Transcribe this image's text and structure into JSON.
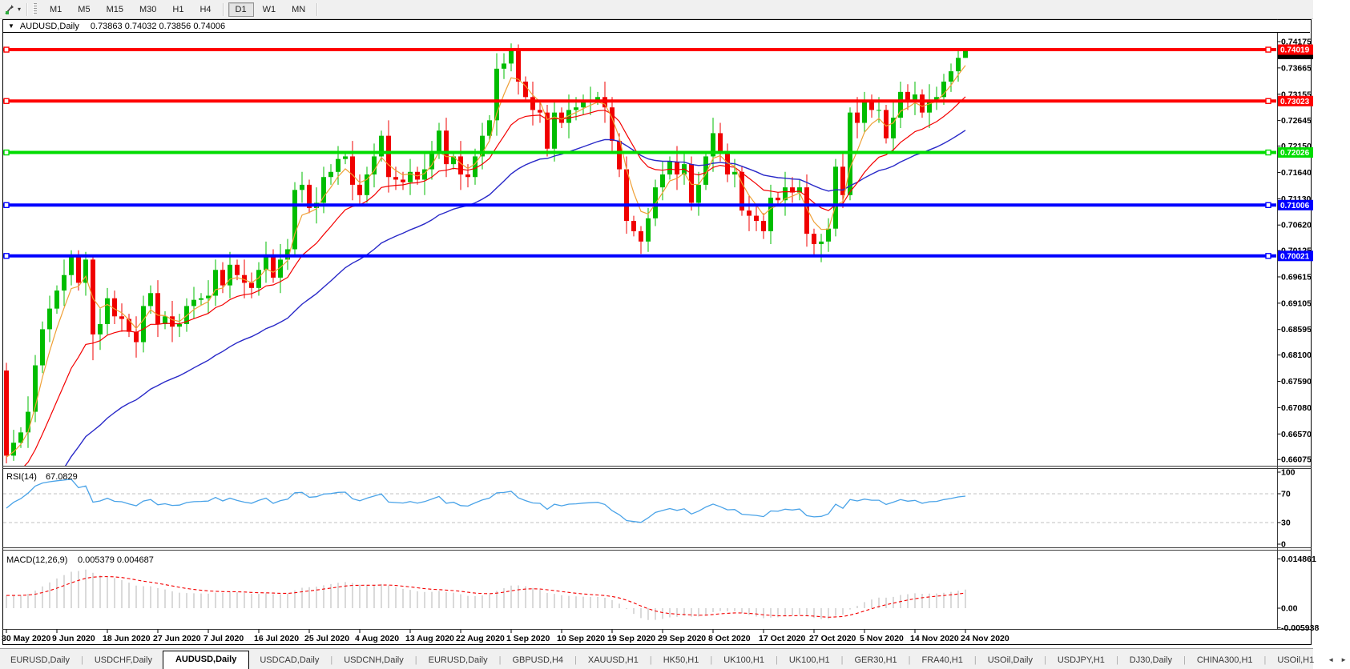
{
  "toolbar": {
    "caret": "▾",
    "timeframes": [
      "M1",
      "M5",
      "M15",
      "M30",
      "H1",
      "H4",
      "D1",
      "W1",
      "MN"
    ],
    "active_timeframe": "D1"
  },
  "chart": {
    "menu_icon": "▼",
    "symbol_title": "AUDUSD,Daily",
    "ohlc": "0.73863 0.74032 0.73856 0.74006"
  },
  "price_axis": {
    "labels": [
      "0.74175",
      "0.73665",
      "0.73155",
      "0.72645",
      "0.72150",
      "0.71640",
      "0.71130",
      "0.70620",
      "0.70125",
      "0.69615",
      "0.69105",
      "0.68595",
      "0.68100",
      "0.67590",
      "0.67080",
      "0.66570",
      "0.66075"
    ]
  },
  "hlines": [
    {
      "label": "0.74019",
      "price": 0.74019,
      "color": "#ff0000"
    },
    {
      "label": "0.73023",
      "price": 0.73023,
      "color": "#ff0000"
    },
    {
      "label": "0.72026",
      "price": 0.72026,
      "color": "#00dc00"
    },
    {
      "label": "0.71006",
      "price": 0.71006,
      "color": "#0000ff"
    },
    {
      "label": "0.70021",
      "price": 0.70021,
      "color": "#0000ff"
    }
  ],
  "bid_marker": {
    "price": 0.74006,
    "color": "#000000"
  },
  "date_axis": {
    "labels": [
      "30 May 2020",
      "9 Jun 2020",
      "18 Jun 2020",
      "27 Jun 2020",
      "7 Jul 2020",
      "16 Jul 2020",
      "25 Jul 2020",
      "4 Aug 2020",
      "13 Aug 2020",
      "22 Aug 2020",
      "1 Sep 2020",
      "10 Sep 2020",
      "19 Sep 2020",
      "29 Sep 2020",
      "8 Oct 2020",
      "17 Oct 2020",
      "27 Oct 2020",
      "5 Nov 2020",
      "14 Nov 2020",
      "24 Nov 2020"
    ],
    "bar_indices": [
      0,
      7,
      14,
      21,
      28,
      35,
      42,
      49,
      56,
      63,
      70,
      77,
      84,
      91,
      98,
      105,
      112,
      119,
      126,
      133
    ]
  },
  "rsi_panel": {
    "name": "RSI(14)",
    "value": "67.0829",
    "scale": [
      "100",
      "70",
      "30",
      "0"
    ],
    "upper_level": 70,
    "lower_level": 30
  },
  "macd_panel": {
    "name": "MACD(12,26,9)",
    "values": "0.005379 0.004687",
    "scale": [
      "0.014861",
      "0.00",
      "-0.005938"
    ]
  },
  "tabs": {
    "separator": "|",
    "scroll_left_icon": "◄",
    "scroll_right_icon": "►",
    "active_index": 2,
    "items": [
      "EURUSD,Daily",
      "USDCHF,Daily",
      "AUDUSD,Daily",
      "USDCAD,Daily",
      "USDCNH,Daily",
      "EURUSD,Daily",
      "GBPUSD,H4",
      "XAUUSD,H1",
      "HK50,H1",
      "UK100,H1",
      "UK100,H1",
      "GER30,H1",
      "FRA40,H1",
      "USOil,Daily",
      "USDJPY,H1",
      "DJ30,Daily",
      "CHINA300,H1",
      "USOil,H1"
    ]
  },
  "colors": {
    "bull_candle": "#00bd00",
    "bear_candle": "#f00000",
    "ma_fast": "#efa036",
    "ma_medium": "#f40000",
    "ma_slow": "#2929c8",
    "rsi_line": "#4aa3e8",
    "macd_histogram": "#b4b4b4",
    "macd_signal": "#f40000",
    "level_dashed": "#c0c0c0",
    "pane_border": "#3c3c3c"
  },
  "chart_data": {
    "type": "candlestick",
    "symbol": "AUDUSD",
    "timeframe": "Daily",
    "title": "AUDUSD,Daily",
    "current_ohlc": {
      "open": 0.73863,
      "high": 0.74032,
      "low": 0.73856,
      "close": 0.74006
    },
    "y_axis_range": [
      0.659,
      0.7435
    ],
    "horizontal_levels": [
      0.74019,
      0.73023,
      0.72026,
      0.71006,
      0.70021
    ],
    "indicators": [
      {
        "name": "RSI",
        "period": 14,
        "current": 67.0829,
        "levels": [
          70,
          30
        ],
        "range": [
          0,
          100
        ]
      },
      {
        "name": "MACD",
        "params": [
          12,
          26,
          9
        ],
        "current": [
          0.005379,
          0.004687
        ],
        "range": [
          -0.005938,
          0.014861
        ]
      }
    ],
    "candles": [
      [
        0.678,
        0.6795,
        0.66,
        0.6615
      ],
      [
        0.6615,
        0.6665,
        0.6605,
        0.664
      ],
      [
        0.664,
        0.667,
        0.663,
        0.666
      ],
      [
        0.666,
        0.673,
        0.663,
        0.67
      ],
      [
        0.67,
        0.681,
        0.668,
        0.679
      ],
      [
        0.679,
        0.6875,
        0.6775,
        0.686
      ],
      [
        0.686,
        0.6925,
        0.6835,
        0.69
      ],
      [
        0.69,
        0.6945,
        0.689,
        0.6935
      ],
      [
        0.6935,
        0.6995,
        0.6905,
        0.6965
      ],
      [
        0.6965,
        0.7013,
        0.6945,
        0.7
      ],
      [
        0.7,
        0.7013,
        0.6935,
        0.695
      ],
      [
        0.695,
        0.701,
        0.6925,
        0.6995
      ],
      [
        0.6995,
        0.7005,
        0.68,
        0.685
      ],
      [
        0.685,
        0.69,
        0.682,
        0.687
      ],
      [
        0.687,
        0.694,
        0.685,
        0.692
      ],
      [
        0.692,
        0.6935,
        0.687,
        0.6885
      ],
      [
        0.6885,
        0.691,
        0.6855,
        0.688
      ],
      [
        0.688,
        0.689,
        0.6845,
        0.6855
      ],
      [
        0.6855,
        0.6885,
        0.6805,
        0.6835
      ],
      [
        0.6835,
        0.6925,
        0.6815,
        0.6905
      ],
      [
        0.6905,
        0.6945,
        0.689,
        0.693
      ],
      [
        0.693,
        0.6955,
        0.6845,
        0.687
      ],
      [
        0.687,
        0.6895,
        0.686,
        0.6885
      ],
      [
        0.6885,
        0.6915,
        0.6835,
        0.6865
      ],
      [
        0.6865,
        0.689,
        0.6845,
        0.687
      ],
      [
        0.687,
        0.692,
        0.6855,
        0.6905
      ],
      [
        0.6905,
        0.6942,
        0.688,
        0.6917
      ],
      [
        0.6917,
        0.693,
        0.6907,
        0.692
      ],
      [
        0.692,
        0.6955,
        0.689,
        0.6925
      ],
      [
        0.6925,
        0.6995,
        0.6905,
        0.6975
      ],
      [
        0.6975,
        0.699,
        0.693,
        0.6945
      ],
      [
        0.6945,
        0.701,
        0.692,
        0.6985
      ],
      [
        0.6985,
        0.6995,
        0.6955,
        0.6965
      ],
      [
        0.6965,
        0.6995,
        0.692,
        0.695
      ],
      [
        0.695,
        0.697,
        0.692,
        0.694
      ],
      [
        0.694,
        0.699,
        0.6925,
        0.6975
      ],
      [
        0.6975,
        0.703,
        0.695,
        0.7005
      ],
      [
        0.7005,
        0.7015,
        0.695,
        0.696
      ],
      [
        0.696,
        0.7025,
        0.693,
        0.6995
      ],
      [
        0.6995,
        0.7035,
        0.6975,
        0.7015
      ],
      [
        0.7015,
        0.7145,
        0.7,
        0.713
      ],
      [
        0.713,
        0.7165,
        0.7105,
        0.714
      ],
      [
        0.714,
        0.715,
        0.7085,
        0.7095
      ],
      [
        0.7095,
        0.7135,
        0.7065,
        0.7105
      ],
      [
        0.7105,
        0.7175,
        0.7085,
        0.7155
      ],
      [
        0.7155,
        0.718,
        0.714,
        0.7165
      ],
      [
        0.7165,
        0.7215,
        0.714,
        0.719
      ],
      [
        0.719,
        0.7205,
        0.718,
        0.7195
      ],
      [
        0.7195,
        0.7225,
        0.711,
        0.714
      ],
      [
        0.714,
        0.716,
        0.71,
        0.712
      ],
      [
        0.712,
        0.7175,
        0.7105,
        0.716
      ],
      [
        0.716,
        0.722,
        0.7135,
        0.7195
      ],
      [
        0.7195,
        0.7245,
        0.7185,
        0.7235
      ],
      [
        0.7235,
        0.7265,
        0.7125,
        0.7155
      ],
      [
        0.7155,
        0.7175,
        0.713,
        0.715
      ],
      [
        0.715,
        0.7165,
        0.713,
        0.7145
      ],
      [
        0.7145,
        0.719,
        0.712,
        0.7165
      ],
      [
        0.7165,
        0.7175,
        0.714,
        0.715
      ],
      [
        0.715,
        0.72,
        0.712,
        0.717
      ],
      [
        0.717,
        0.7225,
        0.715,
        0.7205
      ],
      [
        0.7205,
        0.726,
        0.719,
        0.7245
      ],
      [
        0.7245,
        0.727,
        0.7155,
        0.718
      ],
      [
        0.718,
        0.7205,
        0.717,
        0.7195
      ],
      [
        0.7195,
        0.7225,
        0.713,
        0.716
      ],
      [
        0.716,
        0.718,
        0.7135,
        0.7155
      ],
      [
        0.7155,
        0.721,
        0.714,
        0.7195
      ],
      [
        0.7195,
        0.726,
        0.717,
        0.7235
      ],
      [
        0.7235,
        0.7275,
        0.7225,
        0.7265
      ],
      [
        0.7265,
        0.7395,
        0.7235,
        0.7365
      ],
      [
        0.7365,
        0.7395,
        0.7345,
        0.7375
      ],
      [
        0.7375,
        0.7414,
        0.736,
        0.74
      ],
      [
        0.74,
        0.7412,
        0.7315,
        0.734
      ],
      [
        0.734,
        0.735,
        0.73,
        0.731
      ],
      [
        0.731,
        0.734,
        0.7255,
        0.7285
      ],
      [
        0.7285,
        0.7305,
        0.726,
        0.728
      ],
      [
        0.728,
        0.7295,
        0.7195,
        0.721
      ],
      [
        0.721,
        0.7305,
        0.7185,
        0.728
      ],
      [
        0.728,
        0.729,
        0.725,
        0.726
      ],
      [
        0.726,
        0.7315,
        0.723,
        0.7285
      ],
      [
        0.7285,
        0.731,
        0.7265,
        0.729
      ],
      [
        0.729,
        0.7315,
        0.7275,
        0.73
      ],
      [
        0.73,
        0.733,
        0.7275,
        0.7305
      ],
      [
        0.7305,
        0.732,
        0.7295,
        0.731
      ],
      [
        0.731,
        0.734,
        0.726,
        0.729
      ],
      [
        0.729,
        0.731,
        0.7205,
        0.7225
      ],
      [
        0.7225,
        0.724,
        0.7155,
        0.717
      ],
      [
        0.717,
        0.7195,
        0.7045,
        0.707
      ],
      [
        0.707,
        0.708,
        0.704,
        0.705
      ],
      [
        0.705,
        0.706,
        0.7006,
        0.703
      ],
      [
        0.703,
        0.7095,
        0.701,
        0.7075
      ],
      [
        0.7075,
        0.715,
        0.706,
        0.7135
      ],
      [
        0.7135,
        0.7185,
        0.711,
        0.716
      ],
      [
        0.716,
        0.7195,
        0.715,
        0.7185
      ],
      [
        0.7185,
        0.7215,
        0.713,
        0.716
      ],
      [
        0.716,
        0.72,
        0.714,
        0.718
      ],
      [
        0.718,
        0.7195,
        0.709,
        0.7105
      ],
      [
        0.7105,
        0.7165,
        0.708,
        0.714
      ],
      [
        0.714,
        0.7205,
        0.713,
        0.7195
      ],
      [
        0.7195,
        0.727,
        0.7165,
        0.724
      ],
      [
        0.724,
        0.726,
        0.7185,
        0.7205
      ],
      [
        0.7205,
        0.722,
        0.7145,
        0.716
      ],
      [
        0.716,
        0.719,
        0.7135,
        0.7165
      ],
      [
        0.7165,
        0.7175,
        0.708,
        0.709
      ],
      [
        0.709,
        0.712,
        0.705,
        0.708
      ],
      [
        0.708,
        0.71,
        0.705,
        0.707
      ],
      [
        0.707,
        0.7085,
        0.7035,
        0.705
      ],
      [
        0.705,
        0.714,
        0.7025,
        0.7115
      ],
      [
        0.7115,
        0.7125,
        0.71,
        0.711
      ],
      [
        0.711,
        0.7165,
        0.708,
        0.7135
      ],
      [
        0.7135,
        0.7155,
        0.7105,
        0.7125
      ],
      [
        0.7125,
        0.715,
        0.711,
        0.7135
      ],
      [
        0.7135,
        0.716,
        0.702,
        0.7045
      ],
      [
        0.7045,
        0.7055,
        0.7002,
        0.7025
      ],
      [
        0.7025,
        0.7045,
        0.699,
        0.703
      ],
      [
        0.703,
        0.7075,
        0.701,
        0.7055
      ],
      [
        0.7055,
        0.719,
        0.704,
        0.7175
      ],
      [
        0.7175,
        0.72,
        0.7095,
        0.712
      ],
      [
        0.712,
        0.729,
        0.711,
        0.728
      ],
      [
        0.728,
        0.731,
        0.723,
        0.726
      ],
      [
        0.726,
        0.732,
        0.724,
        0.73
      ],
      [
        0.73,
        0.7315,
        0.727,
        0.7285
      ],
      [
        0.7285,
        0.731,
        0.726,
        0.7285
      ],
      [
        0.7285,
        0.7295,
        0.722,
        0.723
      ],
      [
        0.723,
        0.73,
        0.72,
        0.727
      ],
      [
        0.727,
        0.734,
        0.725,
        0.732
      ],
      [
        0.732,
        0.7335,
        0.7285,
        0.73
      ],
      [
        0.73,
        0.734,
        0.7275,
        0.7315
      ],
      [
        0.7315,
        0.7325,
        0.727,
        0.728
      ],
      [
        0.728,
        0.7335,
        0.725,
        0.7305
      ],
      [
        0.7305,
        0.733,
        0.7285,
        0.731
      ],
      [
        0.731,
        0.7355,
        0.7295,
        0.734
      ],
      [
        0.734,
        0.7375,
        0.732,
        0.736
      ],
      [
        0.736,
        0.7405,
        0.734,
        0.7386
      ],
      [
        0.7386,
        0.7403,
        0.7386,
        0.7401
      ]
    ]
  }
}
